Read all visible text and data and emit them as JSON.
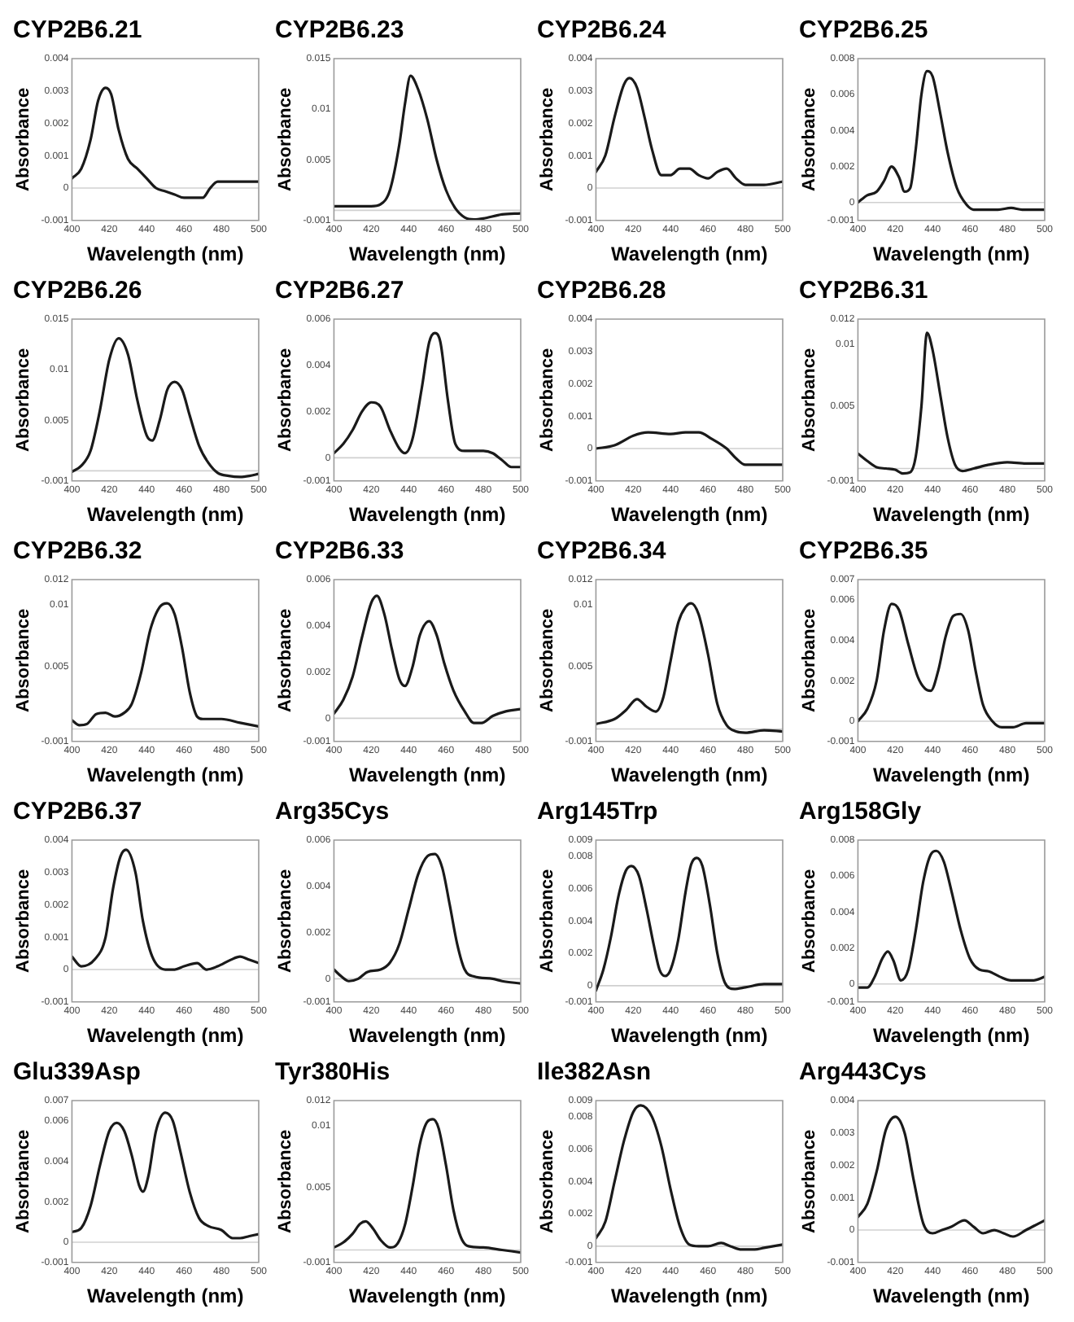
{
  "chart_data": [
    {
      "type": "line",
      "title": "CYP2B6.21",
      "xlabel": "Wavelength (nm)",
      "ylabel": "Absorbance",
      "color": "#1a1a1a",
      "line_style": "solid",
      "xlim": [
        400,
        500
      ],
      "xticks": [
        400,
        420,
        440,
        460,
        480,
        500
      ],
      "ylim": [
        -0.001,
        0.004
      ],
      "yticks": [
        -0.001,
        0,
        0.001,
        0.002,
        0.003,
        0.004
      ],
      "ref_lines": [
        {
          "axis": "y",
          "value": 0,
          "color": "#d0d0d0"
        }
      ],
      "x": [
        400,
        405,
        410,
        414,
        418,
        421,
        425,
        430,
        435,
        440,
        445,
        450,
        455,
        460,
        465,
        470,
        474,
        478,
        485,
        492,
        500
      ],
      "values": [
        0.0003,
        0.0006,
        0.0015,
        0.0027,
        0.0031,
        0.0029,
        0.0018,
        0.0009,
        0.0006,
        0.0003,
        0.0,
        -0.0001,
        -0.0002,
        -0.0003,
        -0.0003,
        -0.0003,
        0.0,
        0.0002,
        0.0002,
        0.0002,
        0.0002
      ]
    },
    {
      "type": "line",
      "title": "CYP2B6.23",
      "xlabel": "Wavelength (nm)",
      "ylabel": "Absorbance",
      "color": "#1a1a1a",
      "line_style": "solid",
      "xlim": [
        400,
        500
      ],
      "xticks": [
        400,
        420,
        440,
        460,
        480,
        500
      ],
      "ylim": [
        -0.001,
        0.015
      ],
      "yticks": [
        -0.001,
        0.005,
        0.01,
        0.015
      ],
      "ref_lines": [
        {
          "axis": "y",
          "value": 0,
          "color": "#d0d0d0"
        }
      ],
      "x": [
        400,
        410,
        420,
        425,
        430,
        435,
        438,
        441,
        445,
        450,
        455,
        460,
        465,
        470,
        475,
        480,
        490,
        500
      ],
      "values": [
        0.0004,
        0.0004,
        0.0004,
        0.0006,
        0.002,
        0.0065,
        0.0105,
        0.0133,
        0.012,
        0.009,
        0.005,
        0.002,
        0.0002,
        -0.0007,
        -0.0009,
        -0.0008,
        -0.0004,
        -0.0003
      ]
    },
    {
      "type": "line",
      "title": "CYP2B6.24",
      "xlabel": "Wavelength (nm)",
      "ylabel": "Absorbance",
      "color": "#1a1a1a",
      "line_style": "solid",
      "xlim": [
        400,
        500
      ],
      "xticks": [
        400,
        420,
        440,
        460,
        480,
        500
      ],
      "ylim": [
        -0.001,
        0.004
      ],
      "yticks": [
        -0.001,
        0,
        0.001,
        0.002,
        0.003,
        0.004
      ],
      "ref_lines": [
        {
          "axis": "y",
          "value": 0,
          "color": "#d0d0d0"
        }
      ],
      "x": [
        400,
        405,
        410,
        415,
        418,
        422,
        426,
        430,
        435,
        440,
        445,
        450,
        455,
        460,
        465,
        470,
        475,
        480,
        490,
        500
      ],
      "values": [
        0.0005,
        0.001,
        0.0022,
        0.0032,
        0.0034,
        0.0031,
        0.0022,
        0.0012,
        0.0004,
        0.0004,
        0.0006,
        0.0006,
        0.0004,
        0.0003,
        0.0005,
        0.0006,
        0.0003,
        0.0001,
        0.0001,
        0.0002
      ]
    },
    {
      "type": "line",
      "title": "CYP2B6.25",
      "xlabel": "Wavelength (nm)",
      "ylabel": "Absorbance",
      "color": "#1a1a1a",
      "line_style": "solid",
      "xlim": [
        400,
        500
      ],
      "xticks": [
        400,
        420,
        440,
        460,
        480,
        500
      ],
      "ylim": [
        -0.001,
        0.008
      ],
      "yticks": [
        -0.001,
        0,
        0.002,
        0.004,
        0.006,
        0.008
      ],
      "ref_lines": [
        {
          "axis": "y",
          "value": 0,
          "color": "#d0d0d0"
        }
      ],
      "x": [
        400,
        405,
        410,
        414,
        418,
        422,
        425,
        428,
        431,
        434,
        437,
        440,
        444,
        448,
        453,
        458,
        462,
        468,
        475,
        482,
        488,
        500
      ],
      "values": [
        0.0,
        0.0004,
        0.0006,
        0.0012,
        0.002,
        0.0014,
        0.0006,
        0.0008,
        0.003,
        0.006,
        0.0073,
        0.007,
        0.005,
        0.0028,
        0.0008,
        -0.0001,
        -0.0004,
        -0.0004,
        -0.0004,
        -0.0003,
        -0.0004,
        -0.0004
      ]
    },
    {
      "type": "line",
      "title": "CYP2B6.26",
      "xlabel": "Wavelength (nm)",
      "ylabel": "Absorbance",
      "color": "#1a1a1a",
      "line_style": "solid",
      "xlim": [
        400,
        500
      ],
      "xticks": [
        400,
        420,
        440,
        460,
        480,
        500
      ],
      "ylim": [
        -0.001,
        0.015
      ],
      "yticks": [
        -0.001,
        0.005,
        0.01,
        0.015
      ],
      "ref_lines": [
        {
          "axis": "y",
          "value": 0,
          "color": "#d0d0d0"
        }
      ],
      "x": [
        400,
        405,
        410,
        415,
        420,
        425,
        430,
        435,
        440,
        443,
        447,
        451,
        455,
        459,
        463,
        468,
        473,
        478,
        484,
        490,
        495,
        500
      ],
      "values": [
        -0.0001,
        0.0005,
        0.002,
        0.006,
        0.011,
        0.0131,
        0.0115,
        0.007,
        0.0035,
        0.003,
        0.005,
        0.008,
        0.0088,
        0.008,
        0.0055,
        0.0025,
        0.0008,
        -0.0002,
        -0.0005,
        -0.0006,
        -0.0005,
        -0.0003
      ]
    },
    {
      "type": "line",
      "title": "CYP2B6.27",
      "xlabel": "Wavelength (nm)",
      "ylabel": "Absorbance",
      "color": "#1a1a1a",
      "line_style": "solid",
      "xlim": [
        400,
        500
      ],
      "xticks": [
        400,
        420,
        440,
        460,
        480,
        500
      ],
      "ylim": [
        -0.001,
        0.006
      ],
      "yticks": [
        -0.001,
        0,
        0.002,
        0.004,
        0.006
      ],
      "ref_lines": [
        {
          "axis": "y",
          "value": 0,
          "color": "#d0d0d0"
        }
      ],
      "x": [
        400,
        405,
        410,
        415,
        420,
        425,
        430,
        435,
        438,
        442,
        447,
        451,
        454,
        457,
        461,
        465,
        470,
        480,
        485,
        490,
        495,
        500
      ],
      "values": [
        0.0002,
        0.0006,
        0.0012,
        0.002,
        0.0024,
        0.0022,
        0.0012,
        0.0004,
        0.0002,
        0.0008,
        0.003,
        0.005,
        0.0054,
        0.005,
        0.0025,
        0.0006,
        0.0003,
        0.0003,
        0.0002,
        -0.0001,
        -0.0004,
        -0.0004
      ]
    },
    {
      "type": "line",
      "title": "CYP2B6.28",
      "xlabel": "Wavelength (nm)",
      "ylabel": "Absorbance",
      "color": "#1a1a1a",
      "line_style": "solid",
      "xlim": [
        400,
        500
      ],
      "xticks": [
        400,
        420,
        440,
        460,
        480,
        500
      ],
      "ylim": [
        -0.001,
        0.004
      ],
      "yticks": [
        -0.001,
        0,
        0.001,
        0.002,
        0.003,
        0.004
      ],
      "ref_lines": [
        {
          "axis": "y",
          "value": 0,
          "color": "#d0d0d0"
        }
      ],
      "x": [
        400,
        410,
        420,
        428,
        440,
        448,
        455,
        462,
        470,
        475,
        480,
        490,
        500
      ],
      "values": [
        0.0,
        0.0001,
        0.0004,
        0.0005,
        0.00045,
        0.0005,
        0.0005,
        0.0003,
        0.0,
        -0.0003,
        -0.0005,
        -0.0005,
        -0.0005
      ]
    },
    {
      "type": "line",
      "title": "CYP2B6.31",
      "xlabel": "Wavelength (nm)",
      "ylabel": "Absorbance",
      "color": "#1a1a1a",
      "line_style": "solid",
      "xlim": [
        400,
        500
      ],
      "xticks": [
        400,
        420,
        440,
        460,
        480,
        500
      ],
      "ylim": [
        -0.001,
        0.012
      ],
      "yticks": [
        -0.001,
        0.005,
        0.01,
        0.012
      ],
      "ref_lines": [
        {
          "axis": "y",
          "value": 0,
          "color": "#d0d0d0"
        }
      ],
      "x": [
        400,
        405,
        410,
        415,
        420,
        424,
        428,
        431,
        434,
        437,
        440,
        444,
        448,
        452,
        456,
        462,
        470,
        480,
        490,
        500
      ],
      "values": [
        0.0012,
        0.0006,
        0.0001,
        0.0,
        -0.0001,
        -0.0004,
        -0.0003,
        0.001,
        0.005,
        0.0109,
        0.0095,
        0.006,
        0.0025,
        0.0003,
        -0.0002,
        0.0,
        0.0003,
        0.0005,
        0.0004,
        0.0004
      ]
    },
    {
      "type": "line",
      "title": "CYP2B6.32",
      "xlabel": "Wavelength (nm)",
      "ylabel": "Absorbance",
      "color": "#1a1a1a",
      "line_style": "solid",
      "xlim": [
        400,
        500
      ],
      "xticks": [
        400,
        420,
        440,
        460,
        480,
        500
      ],
      "ylim": [
        -0.001,
        0.012
      ],
      "yticks": [
        -0.001,
        0.005,
        0.01,
        0.012
      ],
      "ref_lines": [
        {
          "axis": "y",
          "value": 0,
          "color": "#d0d0d0"
        }
      ],
      "x": [
        400,
        404,
        408,
        413,
        418,
        423,
        428,
        432,
        437,
        442,
        447,
        451,
        455,
        459,
        463,
        467,
        470,
        480,
        490,
        500
      ],
      "values": [
        0.0007,
        0.0003,
        0.0004,
        0.0012,
        0.0013,
        0.001,
        0.0013,
        0.002,
        0.0045,
        0.008,
        0.0098,
        0.0101,
        0.0092,
        0.0065,
        0.003,
        0.001,
        0.0008,
        0.0008,
        0.0005,
        0.0002
      ]
    },
    {
      "type": "line",
      "title": "CYP2B6.33",
      "xlabel": "Wavelength (nm)",
      "ylabel": "Absorbance",
      "color": "#1a1a1a",
      "line_style": "solid",
      "xlim": [
        400,
        500
      ],
      "xticks": [
        400,
        420,
        440,
        460,
        480,
        500
      ],
      "ylim": [
        -0.001,
        0.006
      ],
      "yticks": [
        -0.001,
        0,
        0.002,
        0.004,
        0.006
      ],
      "ref_lines": [
        {
          "axis": "y",
          "value": 0,
          "color": "#d0d0d0"
        }
      ],
      "x": [
        400,
        405,
        410,
        415,
        420,
        423,
        427,
        431,
        435,
        438,
        442,
        446,
        451,
        455,
        459,
        464,
        470,
        475,
        479,
        485,
        492,
        500
      ],
      "values": [
        0.0002,
        0.0008,
        0.0018,
        0.0035,
        0.005,
        0.0053,
        0.0045,
        0.003,
        0.0017,
        0.0014,
        0.0022,
        0.0036,
        0.0042,
        0.0036,
        0.0024,
        0.0012,
        0.0003,
        -0.0002,
        -0.0002,
        0.0001,
        0.0003,
        0.0004
      ]
    },
    {
      "type": "line",
      "title": "CYP2B6.34",
      "xlabel": "Wavelength (nm)",
      "ylabel": "Absorbance",
      "color": "#1a1a1a",
      "line_style": "solid",
      "xlim": [
        400,
        500
      ],
      "xticks": [
        400,
        420,
        440,
        460,
        480,
        500
      ],
      "ylim": [
        -0.001,
        0.012
      ],
      "yticks": [
        -0.001,
        0.005,
        0.01,
        0.012
      ],
      "ref_lines": [
        {
          "axis": "y",
          "value": 0,
          "color": "#d0d0d0"
        }
      ],
      "x": [
        400,
        410,
        416,
        422,
        427,
        432,
        436,
        440,
        444,
        448,
        451,
        455,
        460,
        465,
        470,
        475,
        480,
        490,
        500
      ],
      "values": [
        0.0004,
        0.0008,
        0.0015,
        0.0024,
        0.0018,
        0.0014,
        0.0025,
        0.0055,
        0.0085,
        0.0098,
        0.0101,
        0.0092,
        0.006,
        0.002,
        0.0003,
        -0.0002,
        -0.0003,
        -0.0001,
        -0.0002
      ]
    },
    {
      "type": "line",
      "title": "CYP2B6.35",
      "xlabel": "Wavelength (nm)",
      "ylabel": "Absorbance",
      "color": "#1a1a1a",
      "line_style": "solid",
      "xlim": [
        400,
        500
      ],
      "xticks": [
        400,
        420,
        440,
        460,
        480,
        500
      ],
      "ylim": [
        -0.001,
        0.007
      ],
      "yticks": [
        -0.001,
        0,
        0.002,
        0.004,
        0.006,
        0.007
      ],
      "ref_lines": [
        {
          "axis": "y",
          "value": 0,
          "color": "#d0d0d0"
        }
      ],
      "x": [
        400,
        405,
        410,
        414,
        418,
        422,
        427,
        432,
        436,
        439,
        443,
        447,
        451,
        455,
        459,
        463,
        467,
        472,
        477,
        483,
        490,
        500
      ],
      "values": [
        0.0,
        0.0006,
        0.002,
        0.0045,
        0.0058,
        0.0055,
        0.0038,
        0.0022,
        0.0016,
        0.0015,
        0.0025,
        0.0042,
        0.0052,
        0.0053,
        0.0045,
        0.0025,
        0.0008,
        0.0,
        -0.0003,
        -0.0003,
        -0.0001,
        -0.0001
      ]
    },
    {
      "type": "line",
      "title": "CYP2B6.37",
      "xlabel": "Wavelength (nm)",
      "ylabel": "Absorbance",
      "color": "#1a1a1a",
      "line_style": "solid",
      "xlim": [
        400,
        500
      ],
      "xticks": [
        400,
        420,
        440,
        460,
        480,
        500
      ],
      "ylim": [
        -0.001,
        0.004
      ],
      "yticks": [
        -0.001,
        0,
        0.001,
        0.002,
        0.003,
        0.004
      ],
      "ref_lines": [
        {
          "axis": "y",
          "value": 0,
          "color": "#d0d0d0"
        }
      ],
      "x": [
        400,
        405,
        412,
        418,
        422,
        426,
        429,
        434,
        438,
        443,
        450,
        455,
        460,
        467,
        472,
        478,
        485,
        490,
        495,
        500
      ],
      "values": [
        0.0004,
        0.0001,
        0.0003,
        0.001,
        0.0025,
        0.0035,
        0.0037,
        0.003,
        0.0015,
        0.0004,
        0.0,
        0.0,
        0.0001,
        0.0002,
        0.0,
        0.0001,
        0.0003,
        0.0004,
        0.0003,
        0.0002
      ]
    },
    {
      "type": "line",
      "title": "Arg35Cys",
      "xlabel": "Wavelength (nm)",
      "ylabel": "Absorbance",
      "color": "#1a1a1a",
      "line_style": "solid",
      "xlim": [
        400,
        500
      ],
      "xticks": [
        400,
        420,
        440,
        460,
        480,
        500
      ],
      "ylim": [
        -0.001,
        0.006
      ],
      "yticks": [
        -0.001,
        0,
        0.002,
        0.004,
        0.006
      ],
      "ref_lines": [
        {
          "axis": "y",
          "value": 0,
          "color": "#d0d0d0"
        }
      ],
      "x": [
        400,
        404,
        408,
        413,
        418,
        425,
        430,
        435,
        440,
        445,
        450,
        454,
        458,
        462,
        466,
        470,
        475,
        485,
        490,
        500
      ],
      "values": [
        0.0004,
        0.0001,
        -0.0001,
        0.0,
        0.0003,
        0.0004,
        0.0007,
        0.0015,
        0.003,
        0.0045,
        0.0053,
        0.0054,
        0.0048,
        0.0032,
        0.0015,
        0.0004,
        0.0001,
        0.0,
        -0.0001,
        -0.0002
      ]
    },
    {
      "type": "line",
      "title": "Arg145Trp",
      "xlabel": "Wavelength (nm)",
      "ylabel": "Absorbance",
      "color": "#1a1a1a",
      "line_style": "solid",
      "xlim": [
        400,
        500
      ],
      "xticks": [
        400,
        420,
        440,
        460,
        480,
        500
      ],
      "ylim": [
        -0.001,
        0.009
      ],
      "yticks": [
        -0.001,
        0,
        0.002,
        0.004,
        0.006,
        0.008,
        0.009
      ],
      "ref_lines": [
        {
          "axis": "y",
          "value": 0,
          "color": "#d0d0d0"
        }
      ],
      "x": [
        400,
        404,
        408,
        412,
        416,
        419,
        423,
        427,
        431,
        434,
        437,
        440,
        444,
        448,
        451,
        454,
        457,
        461,
        465,
        469,
        474,
        480,
        490,
        500
      ],
      "values": [
        -0.0003,
        0.001,
        0.003,
        0.0055,
        0.0071,
        0.0074,
        0.0068,
        0.0048,
        0.0025,
        0.001,
        0.0006,
        0.001,
        0.0028,
        0.0058,
        0.0075,
        0.0079,
        0.0074,
        0.005,
        0.002,
        0.0002,
        -0.0002,
        -0.0001,
        0.0001,
        0.0001
      ]
    },
    {
      "type": "line",
      "title": "Arg158Gly",
      "xlabel": "Wavelength (nm)",
      "ylabel": "Absorbance",
      "color": "#1a1a1a",
      "line_style": "solid",
      "xlim": [
        400,
        500
      ],
      "xticks": [
        400,
        420,
        440,
        460,
        480,
        500
      ],
      "ylim": [
        -0.001,
        0.008
      ],
      "yticks": [
        -0.001,
        0,
        0.002,
        0.004,
        0.006,
        0.008
      ],
      "ref_lines": [
        {
          "axis": "y",
          "value": 0,
          "color": "#d0d0d0"
        }
      ],
      "x": [
        400,
        405,
        409,
        413,
        416,
        419,
        423,
        427,
        431,
        435,
        439,
        442,
        446,
        450,
        455,
        460,
        465,
        470,
        476,
        482,
        488,
        494,
        500
      ],
      "values": [
        -0.0002,
        -0.0002,
        0.0004,
        0.0014,
        0.0018,
        0.0013,
        0.0002,
        0.0008,
        0.003,
        0.0057,
        0.0072,
        0.0074,
        0.0068,
        0.0052,
        0.003,
        0.0014,
        0.0008,
        0.0007,
        0.0004,
        0.0002,
        0.0002,
        0.0002,
        0.0004
      ]
    },
    {
      "type": "line",
      "title": "Glu339Asp",
      "xlabel": "Wavelength (nm)",
      "ylabel": "Absorbance",
      "color": "#1a1a1a",
      "line_style": "solid",
      "xlim": [
        400,
        500
      ],
      "xticks": [
        400,
        420,
        440,
        460,
        480,
        500
      ],
      "ylim": [
        -0.001,
        0.007
      ],
      "yticks": [
        -0.001,
        0,
        0.002,
        0.004,
        0.006,
        0.007
      ],
      "ref_lines": [
        {
          "axis": "y",
          "value": 0,
          "color": "#d0d0d0"
        }
      ],
      "x": [
        400,
        405,
        410,
        415,
        420,
        424,
        428,
        432,
        436,
        438,
        441,
        445,
        450,
        454,
        458,
        463,
        468,
        473,
        480,
        486,
        490,
        495,
        500
      ],
      "values": [
        0.0005,
        0.0007,
        0.0018,
        0.0038,
        0.0055,
        0.0059,
        0.0055,
        0.0043,
        0.0028,
        0.0025,
        0.0033,
        0.0055,
        0.0064,
        0.006,
        0.0045,
        0.0025,
        0.0012,
        0.0008,
        0.0006,
        0.0002,
        0.0002,
        0.0003,
        0.0004
      ]
    },
    {
      "type": "line",
      "title": "Tyr380His",
      "xlabel": "Wavelength (nm)",
      "ylabel": "Absorbance",
      "color": "#1a1a1a",
      "line_style": "solid",
      "xlim": [
        400,
        500
      ],
      "xticks": [
        400,
        420,
        440,
        460,
        480,
        500
      ],
      "ylim": [
        -0.001,
        0.012
      ],
      "yticks": [
        -0.001,
        0.005,
        0.01,
        0.012
      ],
      "ref_lines": [
        {
          "axis": "y",
          "value": 0,
          "color": "#d0d0d0"
        }
      ],
      "x": [
        400,
        405,
        410,
        414,
        417,
        421,
        425,
        430,
        434,
        438,
        442,
        446,
        450,
        453,
        456,
        460,
        464,
        468,
        472,
        480,
        490,
        500
      ],
      "values": [
        0.0002,
        0.0006,
        0.0013,
        0.0021,
        0.0023,
        0.0017,
        0.0008,
        0.0002,
        0.0005,
        0.002,
        0.005,
        0.0085,
        0.0103,
        0.0105,
        0.0098,
        0.0068,
        0.0032,
        0.001,
        0.0003,
        0.0002,
        0.0,
        -0.0002
      ]
    },
    {
      "type": "line",
      "title": "Ile382Asn",
      "xlabel": "Wavelength (nm)",
      "ylabel": "Absorbance",
      "color": "#1a1a1a",
      "line_style": "solid",
      "xlim": [
        400,
        500
      ],
      "xticks": [
        400,
        420,
        440,
        460,
        480,
        500
      ],
      "ylim": [
        -0.001,
        0.009
      ],
      "yticks": [
        -0.001,
        0,
        0.002,
        0.004,
        0.006,
        0.008,
        0.009
      ],
      "ref_lines": [
        {
          "axis": "y",
          "value": 0,
          "color": "#d0d0d0"
        }
      ],
      "x": [
        400,
        405,
        410,
        415,
        420,
        424,
        430,
        435,
        440,
        445,
        450,
        455,
        460,
        467,
        472,
        478,
        485,
        490,
        500
      ],
      "values": [
        0.0005,
        0.0015,
        0.004,
        0.0065,
        0.0083,
        0.0087,
        0.008,
        0.0062,
        0.0035,
        0.0012,
        0.0001,
        0.0,
        0.0,
        0.0002,
        0.0,
        -0.0002,
        -0.0002,
        -0.0001,
        0.0001
      ]
    },
    {
      "type": "line",
      "title": "Arg443Cys",
      "xlabel": "Wavelength (nm)",
      "ylabel": "Absorbance",
      "color": "#1a1a1a",
      "line_style": "solid",
      "xlim": [
        400,
        500
      ],
      "xticks": [
        400,
        420,
        440,
        460,
        480,
        500
      ],
      "ylim": [
        -0.001,
        0.004
      ],
      "yticks": [
        -0.001,
        0,
        0.001,
        0.002,
        0.003,
        0.004
      ],
      "ref_lines": [
        {
          "axis": "y",
          "value": 0,
          "color": "#d0d0d0"
        }
      ],
      "x": [
        400,
        405,
        410,
        415,
        420,
        425,
        430,
        435,
        440,
        445,
        450,
        457,
        462,
        467,
        473,
        478,
        483,
        490,
        500
      ],
      "values": [
        0.0004,
        0.0008,
        0.0018,
        0.0031,
        0.0035,
        0.003,
        0.0015,
        0.0002,
        -0.0001,
        0.0,
        0.0001,
        0.0003,
        0.0001,
        -0.0001,
        0.0,
        -0.0001,
        -0.0002,
        0.0,
        0.0003
      ]
    }
  ]
}
